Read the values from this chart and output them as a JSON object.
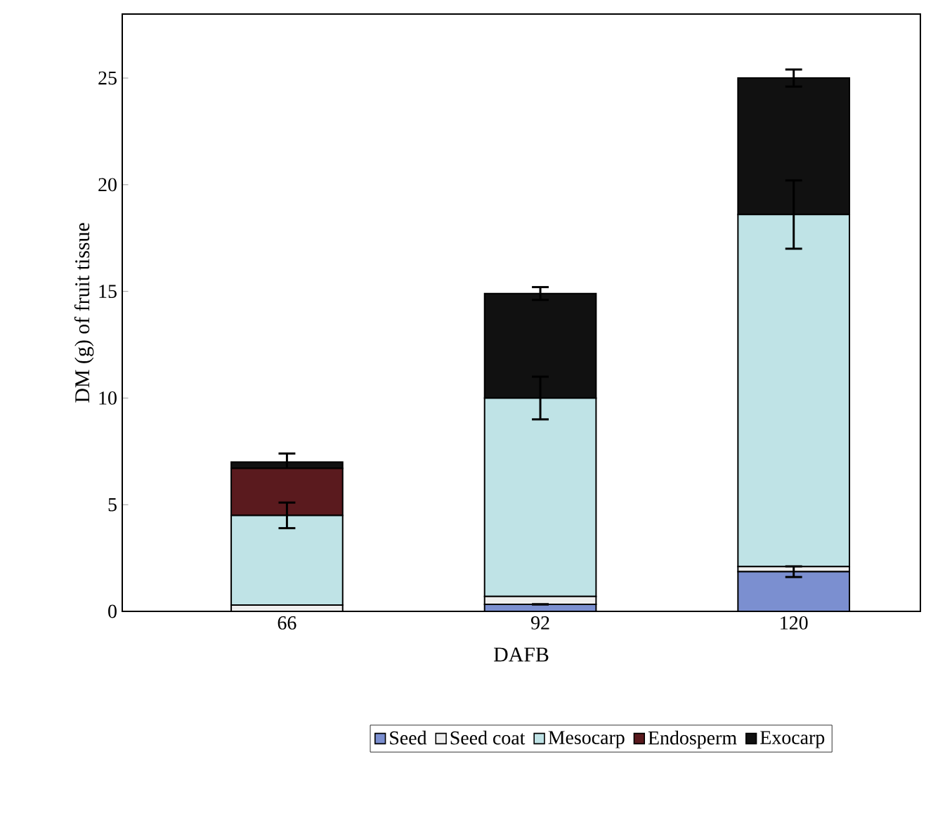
{
  "chart_data": {
    "type": "bar",
    "stacked": true,
    "xlabel": "DAFB",
    "ylabel": "DM (g) of fruit tissue",
    "categories": [
      "66",
      "92",
      "120"
    ],
    "ylim": [
      0,
      28
    ],
    "yticks": [
      0,
      5,
      10,
      15,
      20,
      25
    ],
    "grid": false,
    "legend": "bottom",
    "series": [
      {
        "name": "Seed",
        "color": "#7b8fd0",
        "values": [
          null,
          0.33,
          1.86
        ],
        "errors": [
          null,
          null,
          0.25
        ]
      },
      {
        "name": "Seed coat",
        "color": "#eeeeee",
        "values": [
          0.3,
          0.37,
          0.24
        ]
      },
      {
        "name": "Mesocarp",
        "color": "#bfe3e6",
        "values": [
          4.2,
          9.3,
          16.5
        ],
        "errors": [
          0.6,
          1.0,
          1.6
        ]
      },
      {
        "name": "Endosperm",
        "color": "#5a1a1e",
        "values": [
          2.2,
          0,
          0
        ]
      },
      {
        "name": "Exocarp",
        "color": "#111111",
        "values": [
          0.3,
          4.9,
          6.4
        ],
        "errors": [
          0.4,
          0.3,
          0.4
        ]
      }
    ]
  }
}
